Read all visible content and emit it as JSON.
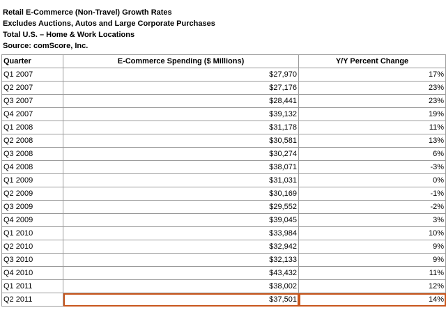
{
  "header": {
    "lines": [
      "Retail E-Commerce (Non-Travel) Growth Rates",
      "Excludes Auctions, Autos and Large Corporate Purchases",
      "Total U.S. – Home & Work Locations",
      "Source: comScore, Inc."
    ]
  },
  "columns": [
    "Quarter",
    "E-Commerce Spending ($ Millions)",
    "Y/Y Percent Change"
  ],
  "highlight_color": "#c8561c",
  "highlighted_row": "Q2 2011",
  "chart_data": {
    "type": "table",
    "title": "Retail E-Commerce (Non-Travel) Growth Rates",
    "columns": [
      "Quarter",
      "E-Commerce Spending ($ Millions)",
      "Y/Y Percent Change"
    ],
    "rows": [
      [
        "Q1 2007",
        "$27,970",
        "17%"
      ],
      [
        "Q2 2007",
        "$27,176",
        "23%"
      ],
      [
        "Q3 2007",
        "$28,441",
        "23%"
      ],
      [
        "Q4 2007",
        "$39,132",
        "19%"
      ],
      [
        "Q1 2008",
        "$31,178",
        "11%"
      ],
      [
        "Q2 2008",
        "$30,581",
        "13%"
      ],
      [
        "Q3 2008",
        "$30,274",
        "6%"
      ],
      [
        "Q4 2008",
        "$38,071",
        "-3%"
      ],
      [
        "Q1 2009",
        "$31,031",
        "0%"
      ],
      [
        "Q2 2009",
        "$30,169",
        "-1%"
      ],
      [
        "Q3 2009",
        "$29,552",
        "-2%"
      ],
      [
        "Q4 2009",
        "$39,045",
        "3%"
      ],
      [
        "Q1 2010",
        "$33,984",
        "10%"
      ],
      [
        "Q2 2010",
        "$32,942",
        "9%"
      ],
      [
        "Q3 2010",
        "$32,133",
        "9%"
      ],
      [
        "Q4 2010",
        "$43,432",
        "11%"
      ],
      [
        "Q1 2011",
        "$38,002",
        "12%"
      ],
      [
        "Q2 2011",
        "$37,501",
        "14%"
      ]
    ]
  }
}
